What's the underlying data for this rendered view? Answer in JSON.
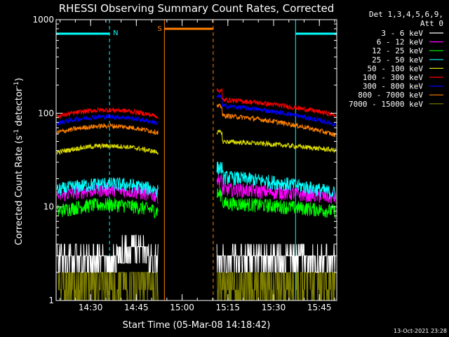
{
  "chart_data": {
    "type": "line",
    "title": "RHESSI Observing Summary Count Rates, Corrected",
    "xlabel": "Start Time (05-Mar-08 14:18:42)",
    "ylabel_main": "Corrected Count Rate (s",
    "ylabel_sup1": "-1",
    "ylabel_mid": " detector",
    "ylabel_sup2": "-1",
    "ylabel_end": ")",
    "y_scale": "log",
    "ylim": [
      1,
      1000
    ],
    "xlim_minutes_after_start": [
      0,
      92
    ],
    "x_tick_labels": [
      "14:30",
      "14:45",
      "15:00",
      "15:15",
      "15:30",
      "15:45"
    ],
    "x_tick_minutes": [
      11.3,
      26.3,
      41.3,
      56.3,
      71.3,
      86.3
    ],
    "y_tick_labels": [
      "1",
      "10",
      "100",
      "1000"
    ],
    "y_tick_values": [
      1,
      10,
      100,
      1000
    ],
    "legend_header": [
      "Det 1,3,4,5,6,9,",
      "Att 0"
    ],
    "legend_placement": "right",
    "footer_date": "13-Oct-2021 23:28",
    "flag_labels": {
      "night": "N",
      "saa": "S"
    },
    "night_intervals_minutes": [
      [
        0,
        17.5
      ],
      [
        78.5,
        92
      ]
    ],
    "saa_interval_minutes": [
      35.5,
      51.5
    ],
    "gap_minutes": [
      33.8,
      52.5
    ],
    "series": [
      {
        "name": "3 - 6 keV",
        "color": "#ffffff",
        "level": [
          2.5,
          3.1,
          2.6
        ]
      },
      {
        "name": "6 - 12 keV",
        "color": "#ff00ff",
        "level": [
          13,
          15.5,
          12.5
        ]
      },
      {
        "name": "12 - 25 keV",
        "color": "#00ff00",
        "level": [
          9,
          11,
          9
        ]
      },
      {
        "name": "25 - 50 keV",
        "color": "#00ffff",
        "level": [
          15,
          21,
          14
        ]
      },
      {
        "name": "50 - 100 keV",
        "color": "#dddd00",
        "level": [
          38,
          50,
          40
        ]
      },
      {
        "name": "100 - 300 keV",
        "color": "#ff0000",
        "level": [
          92,
          140,
          95
        ]
      },
      {
        "name": "300 - 800 keV",
        "color": "#0000ff",
        "level": [
          78,
          120,
          75
        ]
      },
      {
        "name": "800 - 7000 keV",
        "color": "#ff8000",
        "level": [
          62,
          95,
          58
        ]
      },
      {
        "name": "7000 - 15000 keV",
        "color": "#808000",
        "level": [
          1.5,
          1.8,
          1.5
        ]
      }
    ]
  }
}
